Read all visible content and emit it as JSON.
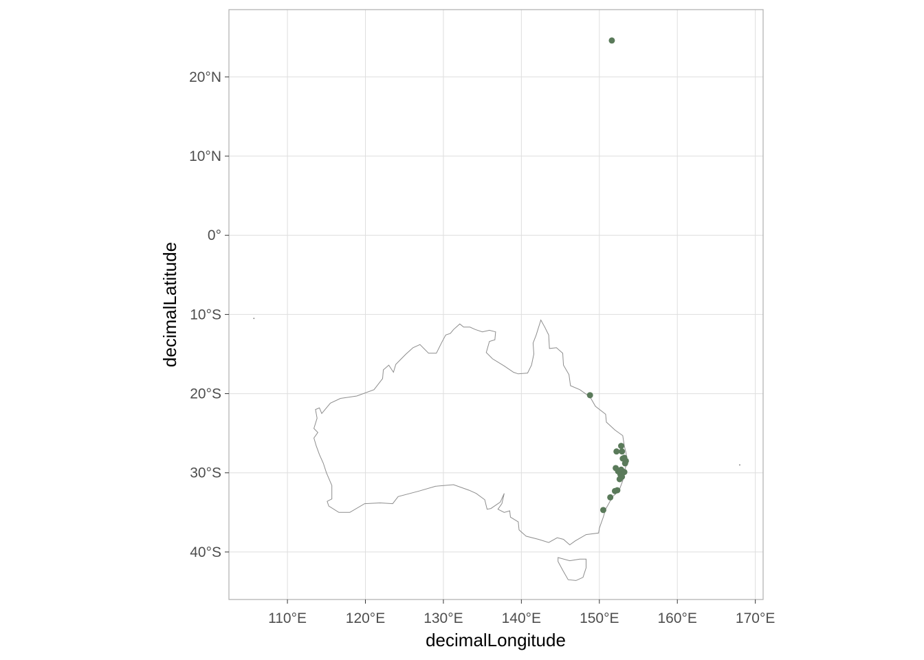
{
  "chart_data": {
    "type": "scatter",
    "title": "",
    "xlabel": "decimalLongitude",
    "ylabel": "decimalLatitude",
    "xlim": [
      102.5,
      171.0
    ],
    "ylim": [
      -46.0,
      28.5
    ],
    "x_ticks": [
      {
        "value": 110,
        "label": "110°E"
      },
      {
        "value": 120,
        "label": "120°E"
      },
      {
        "value": 130,
        "label": "130°E"
      },
      {
        "value": 140,
        "label": "140°E"
      },
      {
        "value": 150,
        "label": "150°E"
      },
      {
        "value": 160,
        "label": "160°E"
      },
      {
        "value": 170,
        "label": "170°E"
      }
    ],
    "y_ticks": [
      {
        "value": 20,
        "label": "20°N"
      },
      {
        "value": 10,
        "label": "10°N"
      },
      {
        "value": 0,
        "label": "0°"
      },
      {
        "value": -10,
        "label": "10°S"
      },
      {
        "value": -20,
        "label": "20°S"
      },
      {
        "value": -30,
        "label": "30°S"
      },
      {
        "value": -40,
        "label": "40°S"
      }
    ],
    "grid": true,
    "point_color": "#5a7a5a",
    "outline_color": "#8c8c8c",
    "grid_color": "#dedede",
    "x": [
      151.6,
      148.8,
      152.8,
      152.2,
      152.9,
      153.2,
      153.4,
      153.3,
      152.1,
      152.8,
      153.2,
      152.7,
      152.9,
      152.6,
      152.3,
      152.0,
      151.4,
      150.5,
      153.0,
      152.4
    ],
    "y": [
      24.6,
      -20.2,
      -26.6,
      -27.3,
      -27.3,
      -28.1,
      -28.5,
      -28.8,
      -29.4,
      -29.6,
      -29.9,
      -30.2,
      -30.5,
      -30.8,
      -32.2,
      -32.3,
      -33.1,
      -34.7,
      -28.2,
      -29.8
    ]
  }
}
